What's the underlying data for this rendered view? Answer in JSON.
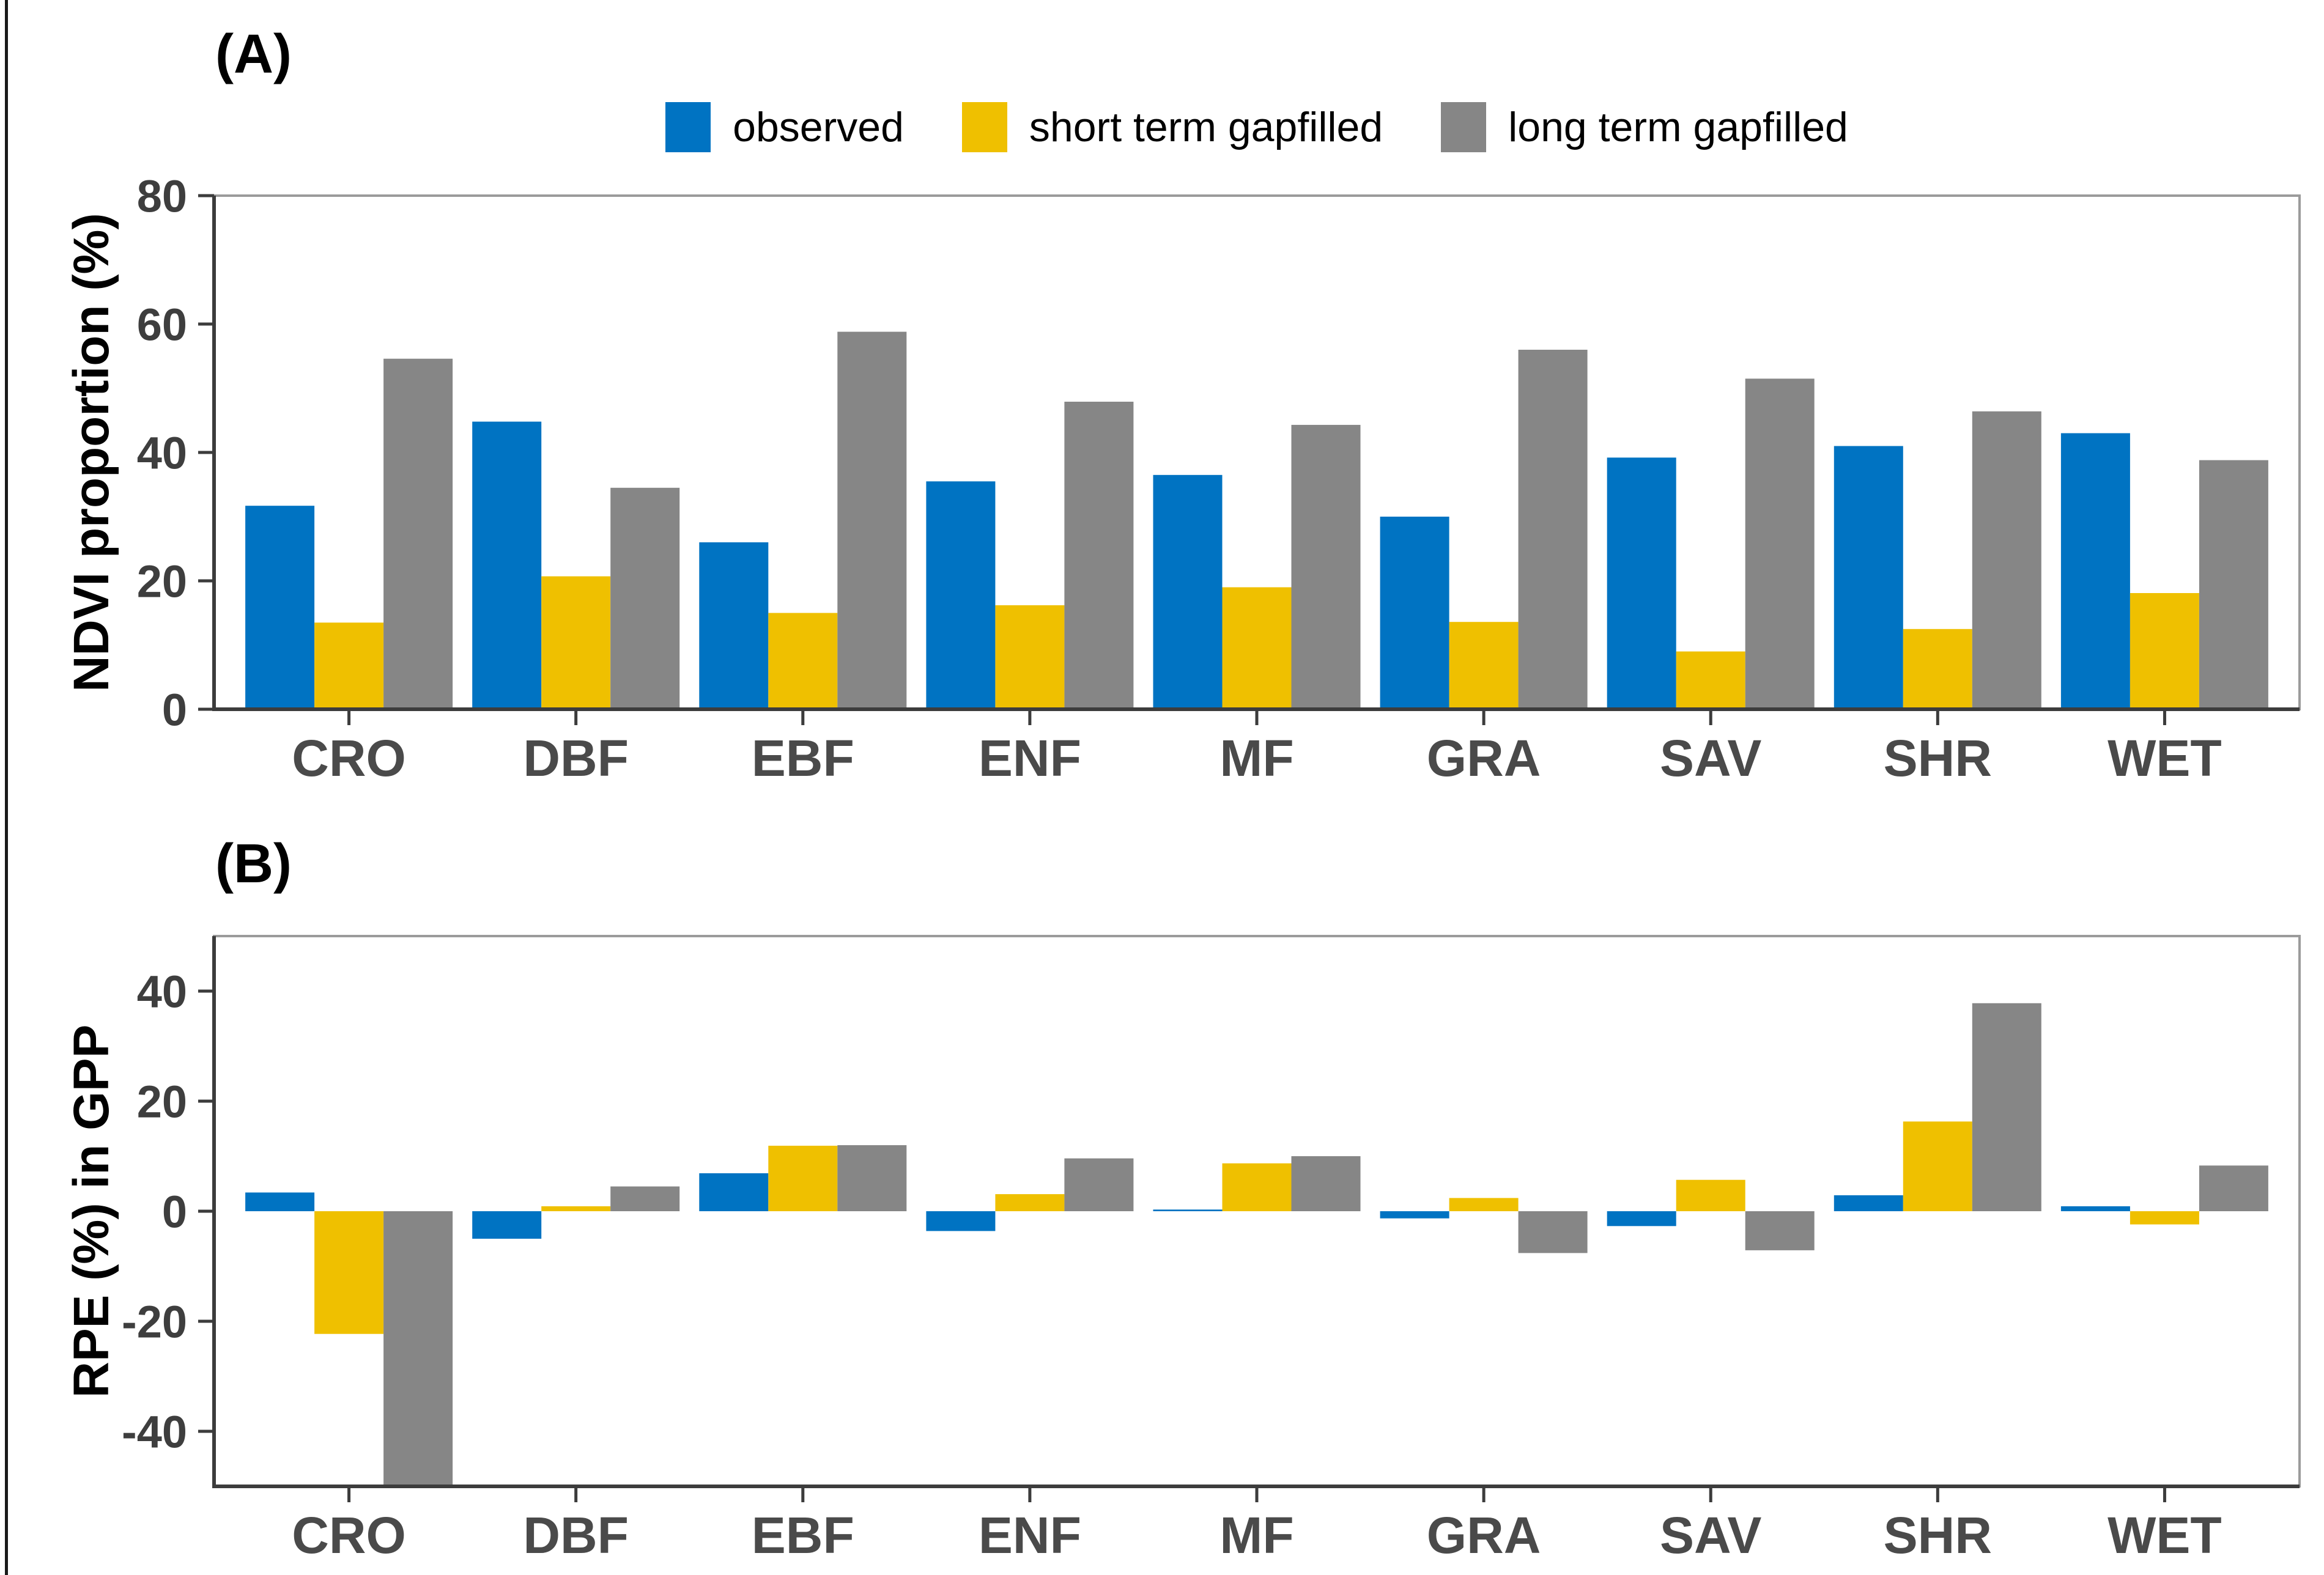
{
  "figure": {
    "background": "#ffffff",
    "left_rule_color": "#1a1a1a",
    "panel_border_color": "#9B9B9B",
    "axis_line_color": "#3C3C3C",
    "tick_label_color": "#3E3E3E",
    "category_label_color": "#4A4A4A"
  },
  "chart_data": [
    {
      "id": "A",
      "type": "bar",
      "panel_label": "(A)",
      "title": "",
      "xlabel": "",
      "ylabel": "NDVI proportion (%)",
      "ylim": [
        0,
        80
      ],
      "yticks": [
        0,
        20,
        40,
        60,
        80
      ],
      "grid": false,
      "legend_position": "top",
      "categories": [
        "CRO",
        "DBF",
        "EBF",
        "ENF",
        "MF",
        "GRA",
        "SAV",
        "SHR",
        "WET"
      ],
      "series": [
        {
          "name": "observed",
          "color": "#0073C2",
          "values": [
            31.7,
            44.8,
            26.0,
            35.5,
            36.5,
            30.0,
            39.2,
            41.0,
            43.0
          ]
        },
        {
          "name": "short term gapfilled",
          "color": "#EFC000",
          "values": [
            13.5,
            20.7,
            15.0,
            16.2,
            19.0,
            13.6,
            9.0,
            12.5,
            18.1
          ]
        },
        {
          "name": "long term gapfilled",
          "color": "#868686",
          "values": [
            54.6,
            34.5,
            58.8,
            47.9,
            44.3,
            56.0,
            51.5,
            46.4,
            38.8
          ]
        }
      ]
    },
    {
      "id": "B",
      "type": "bar",
      "panel_label": "(B)",
      "title": "",
      "xlabel": "",
      "ylabel": "RPE (%) in GPP",
      "ylim": [
        -50,
        50
      ],
      "yticks": [
        -40,
        -20,
        0,
        20,
        40
      ],
      "grid": false,
      "legend_position": "none",
      "note": "CRO long term gapfilled bar is clipped at the lower axis limit (-50)",
      "categories": [
        "CRO",
        "DBF",
        "EBF",
        "ENF",
        "MF",
        "GRA",
        "SAV",
        "SHR",
        "WET"
      ],
      "series": [
        {
          "name": "observed",
          "color": "#0073C2",
          "values": [
            3.4,
            -5.0,
            6.9,
            -3.6,
            0.3,
            -1.3,
            -2.7,
            2.9,
            0.9
          ]
        },
        {
          "name": "short term gapfilled",
          "color": "#EFC000",
          "values": [
            -22.3,
            0.9,
            11.9,
            3.1,
            8.7,
            2.4,
            5.7,
            16.3,
            -2.4
          ]
        },
        {
          "name": "long term gapfilled",
          "color": "#868686",
          "values": [
            -50.0,
            4.5,
            12.0,
            9.6,
            10.0,
            -7.6,
            -7.1,
            37.8,
            8.3
          ]
        }
      ]
    }
  ]
}
